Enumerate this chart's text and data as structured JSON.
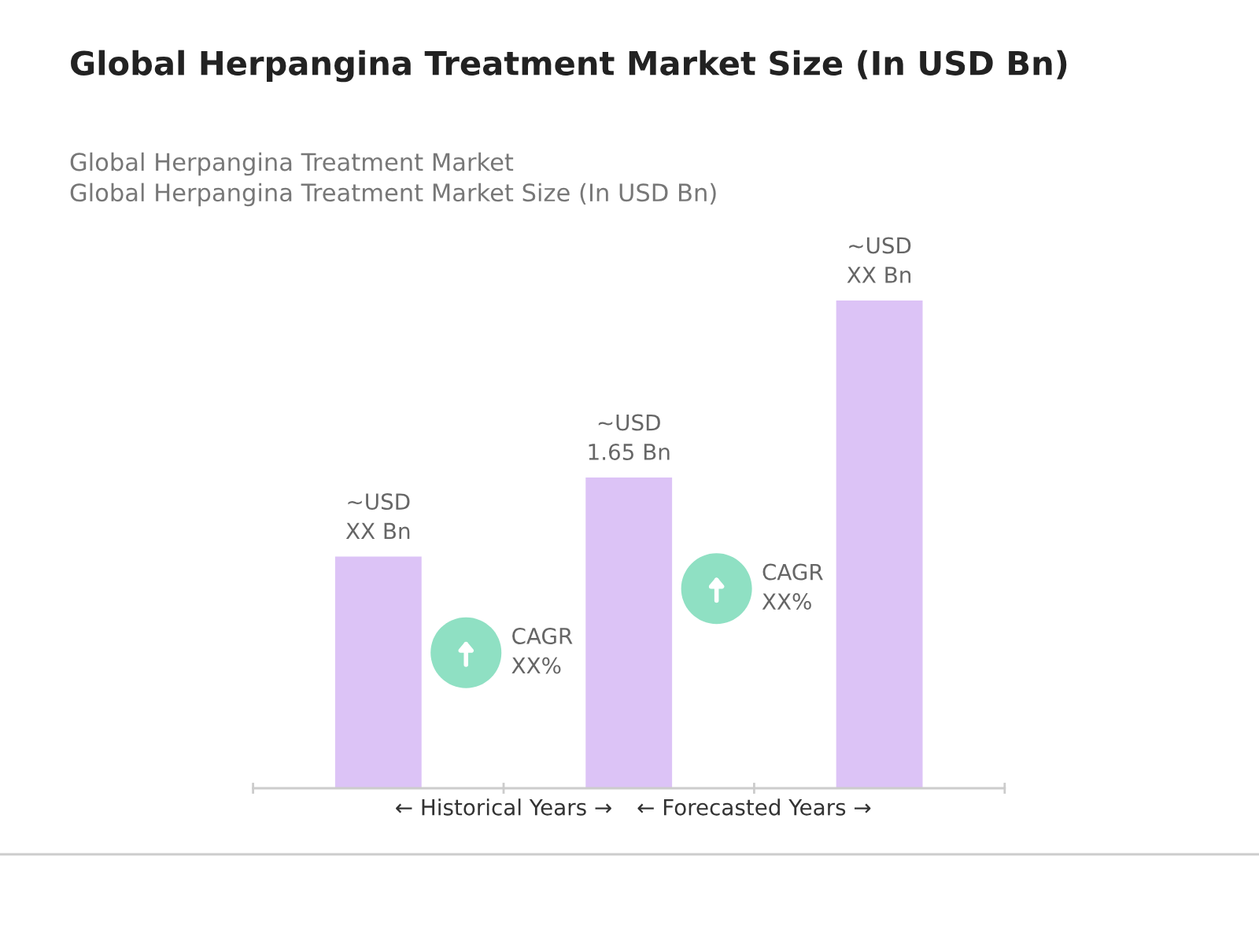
{
  "chart_data": {
    "type": "bar",
    "title": "Global Herpangina Treatment Market Size (In USD Bn)",
    "subtitle": "Global Herpangina Treatment Market\nGlobal Herpangina Treatment Market Size (In USD Bn)",
    "categories": [
      null,
      null,
      null
    ],
    "values": [
      1.23,
      1.65,
      2.59
    ],
    "color": "#dcc3f6",
    "value_labels": [
      "~USD\nXX Bn",
      "~USD\n1.65 Bn",
      "~USD\nXX Bn"
    ],
    "annotations": [
      "CAGR\nXX%",
      "CAGR\nXX%",
      "← Historical Years →",
      "← Forecasted Years →"
    ],
    "grid": false
  }
}
